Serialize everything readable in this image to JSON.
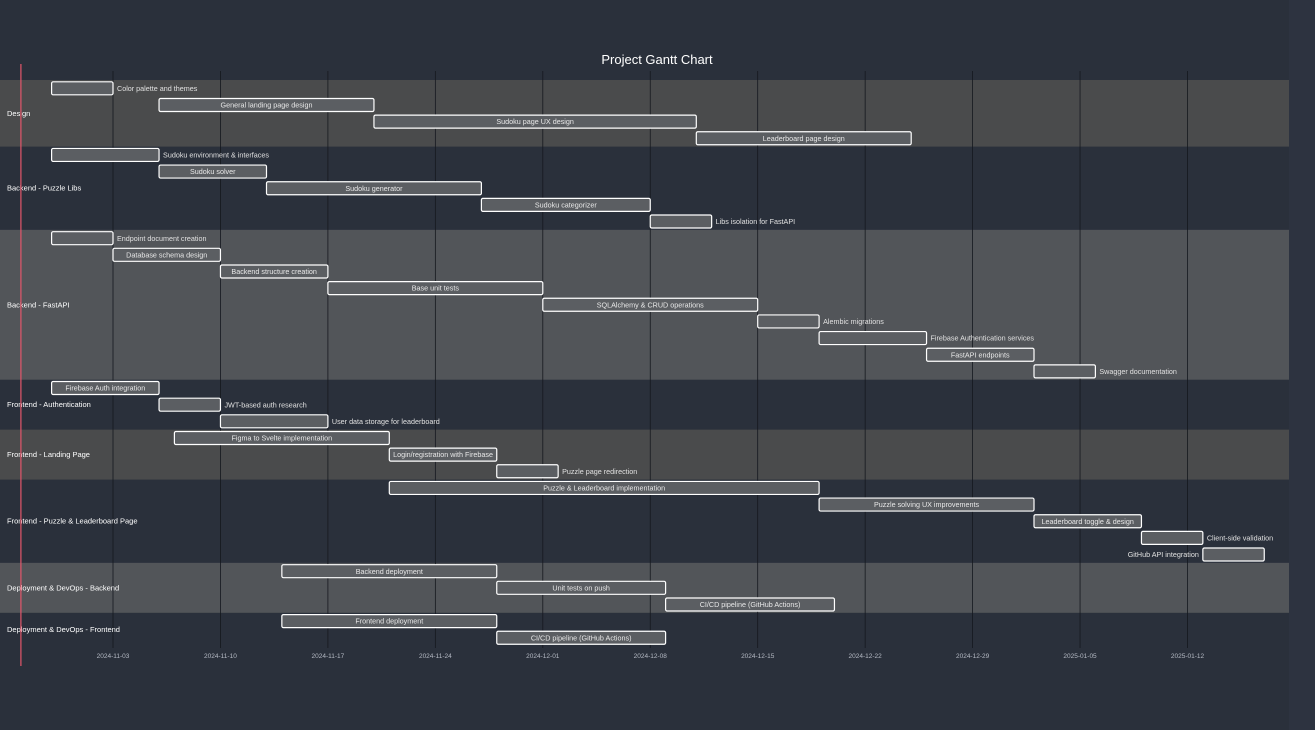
{
  "chart_data": {
    "type": "gantt",
    "title": "Project Gantt Chart",
    "x_range": [
      "2024-10-27",
      "2025-01-17"
    ],
    "ticks": [
      "2024-11-03",
      "2024-11-10",
      "2024-11-17",
      "2024-11-24",
      "2024-12-01",
      "2024-12-08",
      "2024-12-15",
      "2024-12-22",
      "2024-12-29",
      "2025-01-05",
      "2025-01-12"
    ],
    "today": "2024-10-28",
    "colors": {
      "background": "#2a303b",
      "section_light": "#4a4b4c",
      "section_mid": "#525559",
      "bar_fill": "#5b5e62",
      "bar_stroke": "#ffffff",
      "today_line": "#e2566a"
    },
    "sections": [
      {
        "name": "Design",
        "shade": "light",
        "tasks": [
          {
            "name": "Color palette and themes",
            "start": "2024-10-30",
            "end": "2024-11-03",
            "label": "outside-right"
          },
          {
            "name": "General landing page design",
            "start": "2024-11-06",
            "end": "2024-11-20",
            "label": "inside"
          },
          {
            "name": "Sudoku page UX design",
            "start": "2024-11-20",
            "end": "2024-12-11",
            "label": "inside"
          },
          {
            "name": "Leaderboard page design",
            "start": "2024-12-11",
            "end": "2024-12-25",
            "label": "inside"
          }
        ]
      },
      {
        "name": "Backend - Puzzle Libs",
        "shade": "none",
        "tasks": [
          {
            "name": "Sudoku environment & interfaces",
            "start": "2024-10-30",
            "end": "2024-11-06",
            "label": "outside-right"
          },
          {
            "name": "Sudoku solver",
            "start": "2024-11-06",
            "end": "2024-11-13",
            "label": "inside"
          },
          {
            "name": "Sudoku generator",
            "start": "2024-11-13",
            "end": "2024-11-27",
            "label": "inside"
          },
          {
            "name": "Sudoku categorizer",
            "start": "2024-11-27",
            "end": "2024-12-08",
            "label": "inside"
          },
          {
            "name": "Libs isolation for FastAPI",
            "start": "2024-12-08",
            "end": "2024-12-12",
            "label": "outside-right"
          }
        ]
      },
      {
        "name": "Backend - FastAPI",
        "shade": "mid",
        "tasks": [
          {
            "name": "Endpoint document creation",
            "start": "2024-10-30",
            "end": "2024-11-03",
            "label": "outside-right"
          },
          {
            "name": "Database schema design",
            "start": "2024-11-03",
            "end": "2024-11-10",
            "label": "inside"
          },
          {
            "name": "Backend structure creation",
            "start": "2024-11-10",
            "end": "2024-11-17",
            "label": "inside"
          },
          {
            "name": "Base unit tests",
            "start": "2024-11-17",
            "end": "2024-12-01",
            "label": "inside"
          },
          {
            "name": "SQLAlchemy & CRUD operations",
            "start": "2024-12-01",
            "end": "2024-12-15",
            "label": "inside"
          },
          {
            "name": "Alembic migrations",
            "start": "2024-12-15",
            "end": "2024-12-19",
            "label": "outside-right"
          },
          {
            "name": "Firebase Authentication services",
            "start": "2024-12-19",
            "end": "2024-12-26",
            "label": "outside-right"
          },
          {
            "name": "FastAPI endpoints",
            "start": "2024-12-26",
            "end": "2025-01-02",
            "label": "inside"
          },
          {
            "name": "Swagger documentation",
            "start": "2025-01-02",
            "end": "2025-01-06",
            "label": "outside-right"
          }
        ]
      },
      {
        "name": "Frontend - Authentication",
        "shade": "none",
        "tasks": [
          {
            "name": "Firebase Auth integration",
            "start": "2024-10-30",
            "end": "2024-11-06",
            "label": "inside"
          },
          {
            "name": "JWT-based auth research",
            "start": "2024-11-06",
            "end": "2024-11-10",
            "label": "outside-right"
          },
          {
            "name": "User data storage for leaderboard",
            "start": "2024-11-10",
            "end": "2024-11-17",
            "label": "outside-right"
          }
        ]
      },
      {
        "name": "Frontend - Landing Page",
        "shade": "light",
        "tasks": [
          {
            "name": "Figma to Svelte implementation",
            "start": "2024-11-07",
            "end": "2024-11-21",
            "label": "inside"
          },
          {
            "name": "Login/registration with Firebase",
            "start": "2024-11-21",
            "end": "2024-11-28",
            "label": "inside"
          },
          {
            "name": "Puzzle page redirection",
            "start": "2024-11-28",
            "end": "2024-12-02",
            "label": "outside-right"
          }
        ]
      },
      {
        "name": "Frontend - Puzzle & Leaderboard Page",
        "shade": "none",
        "tasks": [
          {
            "name": "Puzzle & Leaderboard implementation",
            "start": "2024-11-21",
            "end": "2024-12-19",
            "label": "inside"
          },
          {
            "name": "Puzzle solving UX improvements",
            "start": "2024-12-19",
            "end": "2025-01-02",
            "label": "inside"
          },
          {
            "name": "Leaderboard toggle & design",
            "start": "2025-01-02",
            "end": "2025-01-09",
            "label": "inside"
          },
          {
            "name": "Client-side validation",
            "start": "2025-01-09",
            "end": "2025-01-13",
            "label": "outside-right"
          },
          {
            "name": "GitHub API integration",
            "start": "2025-01-13",
            "end": "2025-01-17",
            "label": "outside-left"
          }
        ]
      },
      {
        "name": "Deployment & DevOps - Backend",
        "shade": "mid",
        "tasks": [
          {
            "name": "Backend deployment",
            "start": "2024-11-14",
            "end": "2024-11-28",
            "label": "inside"
          },
          {
            "name": "Unit tests on push",
            "start": "2024-11-28",
            "end": "2024-12-09",
            "label": "inside"
          },
          {
            "name": "CI/CD pipeline (GitHub Actions)",
            "start": "2024-12-09",
            "end": "2024-12-20",
            "label": "inside"
          }
        ]
      },
      {
        "name": "Deployment & DevOps - Frontend",
        "shade": "none",
        "tasks": [
          {
            "name": "Frontend deployment",
            "start": "2024-11-14",
            "end": "2024-11-28",
            "label": "inside"
          },
          {
            "name": "CI/CD pipeline (GitHub Actions)",
            "start": "2024-11-28",
            "end": "2024-12-09",
            "label": "inside"
          }
        ]
      }
    ]
  }
}
